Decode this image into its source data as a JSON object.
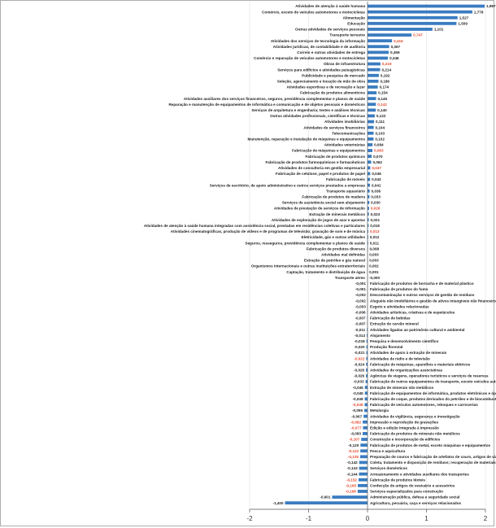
{
  "chart_data": {
    "type": "bar",
    "orientation": "horizontal",
    "title": "",
    "xlabel": "",
    "ylabel": "",
    "xlim": [
      -2,
      2
    ],
    "xticks": [
      -2,
      -1,
      0,
      1,
      2
    ],
    "xtick_labels": [
      "-2",
      "-1",
      "0",
      "1",
      "2"
    ],
    "grid": "vertical",
    "colors": {
      "bar": "#3a7cc1",
      "positive_label": "#222222",
      "highlight_label": "#e8472a",
      "axis": "#555555",
      "grid": "#e2e2e2"
    },
    "categories": [
      "Atividades de atenção à saúde humana",
      "Comércio, exceto de veículos automotores e motocicletas",
      "Alimentação",
      "Educação",
      "Outras atividades de serviços pessoais",
      "Transporte terrestre",
      "Atividades dos serviços de tecnologia da informação",
      "Atividades jurídicas, de contabilidade e de auditoria",
      "Correio e outras atividades de entrega",
      "Comércio e reparação de veículos automotores e motocicletas",
      "Obras de infraestrutura",
      "Serviços para edifícios e atividades paisagísticas",
      "Publicidade e pesquisa de mercado",
      "Seleção, agenciamento e locação de mão de obra",
      "Atividades esportivas e de recreação e lazer",
      "Fabricação de produtos alimentícios",
      "Atividades auxiliares dos serviços financeiros, seguros, previdência complementar e planos de saúde",
      "Reparação e manutenção de equipamentos de informática e comunicação e de objetos pessoais e domésticos",
      "Serviços de arquitetura e engenharia; testes e análises técnicas",
      "Outras atividades profissionais, científicas e técnicas",
      "Atividades imobiliárias",
      "Atividades de serviços financeiros",
      "Telecomunicações",
      "Manutenção, reparação e instalação de máquinas e equipamentos",
      "Atividades veterinárias",
      "Fabricação de máquinas e equipamentos",
      "Fabricação de produtos químicos",
      "Fabricação de produtos farmoquímicos e farmacêuticos",
      "Atividades de consultoria em gestão empresarial",
      "Fabricação de celulose, papel e produtos de papel",
      "Fabricação de móveis",
      "Serviços de escritório, de apoio administrativo e outros serviços prestados a empresas",
      "Transporte aquaviário",
      "Fabricação de produtos de madeira",
      "Serviços de assistência social sem alojamento",
      "Atividades de prestação de serviços de informação",
      "Extração de minerais metálicos",
      "Atividades de exploração de jogos de azar e apostas",
      "Atividades de atenção à saúde humana integradas com assistência social, prestadas em residências coletivas e particulares",
      "Atividades cinematográficas, produção de vídeos e de programas de televisão; gravação de som e de música",
      "Eletricidade, gás e outras utilidades",
      "Seguros, resseguros, previdência complementar e planos de saúde",
      "Fabricação de produtos diversos",
      "Atividades mal definidas",
      "Extração de petróleo e gás natural",
      "Organismos internacionais e outras instituições extraterritoriais",
      "Captação, tratamento e distribuição de água",
      "Transporte aéreo",
      "Fabricação de produtos de borracha e de material plástico",
      "Fabricação de produtos do fumo",
      "Descontaminação e outros serviços de gestão de resíduos",
      "Aluguéis não imobiliários e gestão de ativos intangíveis não financeiros",
      "Esgoto e atividades relacionadas",
      "Atividades artísticas, criativas e de espetáculos",
      "Fabricação de bebidas",
      "Extração de carvão mineral",
      "Atividades ligadas ao patrimônio cultural e ambiental",
      "Alojamento",
      "Pesquisa e desenvolvimento científico",
      "Produção florestal",
      "Atividades de apoio à extração de minerais",
      "Atividades de rádio e de televisão",
      "Fabricação de máquinas, aparelhos e materiais elétricos",
      "Atividades de organizações associativas",
      "Agências de viagens, operadores turísticos e serviços de reservas",
      "Fabricação de outros equipamentos de transporte, exceto veículos automotores",
      "Extração de minerais não metálicos",
      "Fabricação de equipamentos de informática, produtos eletrônicos e ópticos",
      "Fabricação de coque, produtos derivados do petróleo e de biocombustíveis",
      "Fabricação de veículos automotores, reboques e carrocerias",
      "Metalurgia",
      "Atividades de vigilância, segurança e investigação",
      "Impressão e reprodução de gravações",
      "Edição e edição integrada à impressão",
      "Fabricação de produtos de minerais não metálicos",
      "Construção e incorporação de edifícios",
      "Fabricação de produtos de metal, exceto máquinas e equipamentos",
      "Pesca e aquicultura",
      "Preparação de couros e fabricação de artefatos de couro, artigos de viagem e calçados",
      "Coleta, tratamento e disposição de resíduos; recuperação de materiais",
      "Serviços domésticos",
      "Armazenamento e atividades auxiliares dos transportes",
      "Fabricação de produtos têxteis",
      "Confecção de artigos do vestuário e acessórios",
      "Serviços especializados para construção",
      "Administração pública, defesa e seguridade social",
      "Agricultura, pecuária, caça e serviços relacionados"
    ],
    "values": [
      1.987,
      1.778,
      1.527,
      1.509,
      1.101,
      0.747,
      0.416,
      0.367,
      0.359,
      0.346,
      0.219,
      0.214,
      0.192,
      0.186,
      0.174,
      0.154,
      0.145,
      0.142,
      0.14,
      0.122,
      0.111,
      0.104,
      0.103,
      0.102,
      0.084,
      0.083,
      0.07,
      0.062,
      0.047,
      0.046,
      0.043,
      0.041,
      0.036,
      0.033,
      0.03,
      0.026,
      0.023,
      0.021,
      0.018,
      0.013,
      0.012,
      0.011,
      0.008,
      0.003,
      0.003,
      0.002,
      0.001,
      -0.0,
      -0.001,
      -0.001,
      -0.002,
      -0.002,
      -0.003,
      -0.006,
      -0.007,
      -0.007,
      -0.011,
      -0.013,
      -0.018,
      -0.02,
      -0.021,
      -0.022,
      -0.024,
      -0.026,
      -0.026,
      -0.033,
      -0.045,
      -0.045,
      -0.048,
      -0.049,
      -0.055,
      -0.067,
      -0.082,
      -0.077,
      -0.083,
      -0.107,
      -0.12,
      -0.122,
      -0.125,
      -0.142,
      -0.143,
      -0.144,
      -0.152,
      -0.165,
      -0.168,
      -0.601,
      -1.4
    ],
    "value_labels": [
      "1,987",
      "1,778",
      "1,527",
      "1,509",
      "1,101",
      "0,747",
      "0,416",
      "0,367",
      "0,359",
      "0,346",
      "0,219",
      "0,214",
      "0,192",
      "0,186",
      "0,174",
      "0,154",
      "0,145",
      "0,142",
      "0,140",
      "0,122",
      "0,111",
      "0,104",
      "0,103",
      "0,102",
      "0,084",
      "0,083",
      "0,070",
      "0,062",
      "0,047",
      "0,046",
      "0,043",
      "0,041",
      "0,036",
      "0,033",
      "0,030",
      "0,026",
      "0,023",
      "0,021",
      "0,018",
      "0,013",
      "0,012",
      "0,011",
      "0,008",
      "0,003",
      "0,003",
      "0,002",
      "0,001",
      "-0,000",
      "-0,001",
      "-0,001",
      "-0,002",
      "-0,002",
      "-0,003",
      "-0,006",
      "-0,007",
      "-0,007",
      "-0,011",
      "-0,013",
      "-0,018",
      "-0,020",
      "-0,021",
      "-0,022",
      "-0,024",
      "-0,026",
      "-0,026",
      "-0,033",
      "-0,045",
      "-0,045",
      "-0,048",
      "-0,049",
      "-0,055",
      "-0,067",
      "-0,082",
      "-0,077",
      "-0,083",
      "-0,107",
      "-0,120",
      "-0,122",
      "-0,125",
      "-0,142",
      "-0,143",
      "-0,144",
      "-0,152",
      "-0,165",
      "-0,168",
      "-0,601",
      "-1,400"
    ],
    "highlighted": [
      5,
      6,
      10,
      17,
      25,
      28,
      35,
      39,
      61,
      69,
      72,
      73,
      75,
      77,
      78,
      82,
      83,
      84
    ]
  }
}
